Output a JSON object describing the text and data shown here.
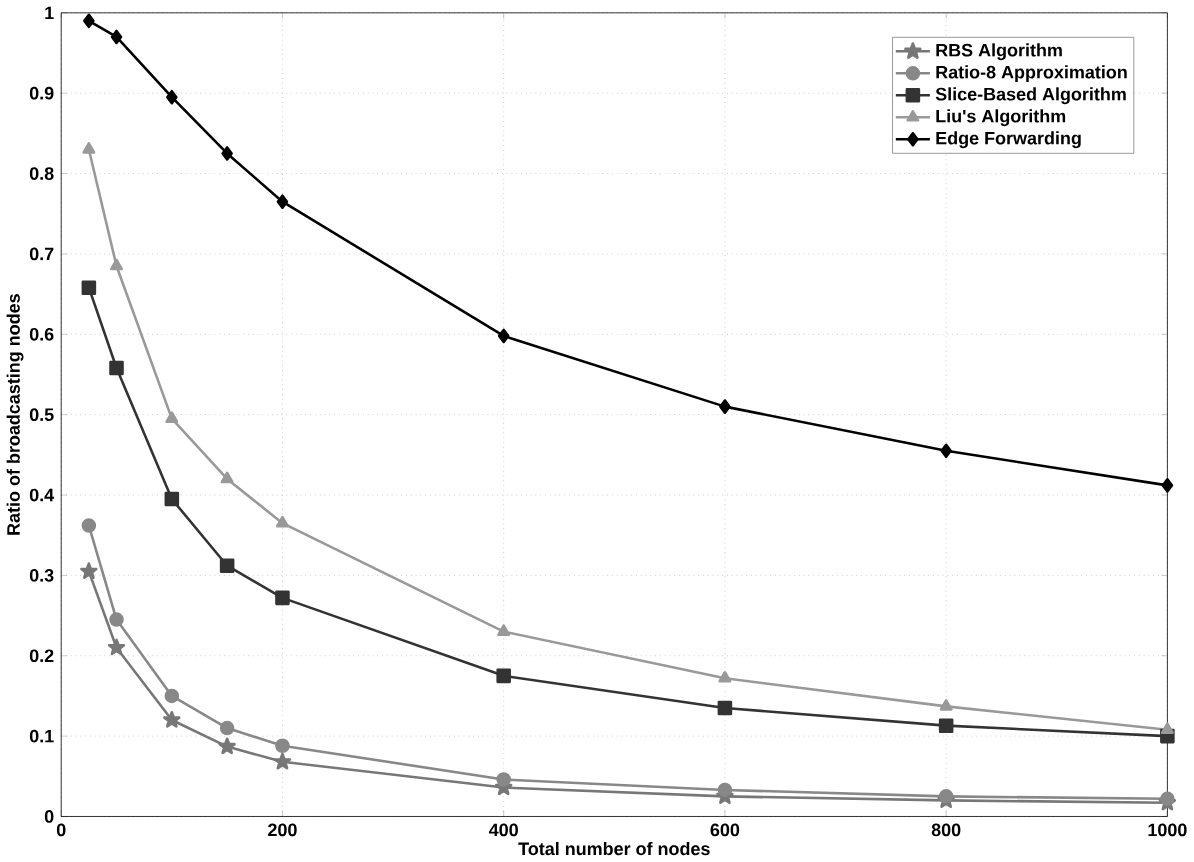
{
  "chart_data": {
    "type": "line",
    "xlabel": "Total number of nodes",
    "ylabel": "Ratio of broadcasting nodes",
    "x": [
      25,
      50,
      100,
      150,
      200,
      400,
      600,
      800,
      1000
    ],
    "xlim": [
      0,
      1000
    ],
    "xticks": [
      0,
      200,
      400,
      600,
      800,
      1000
    ],
    "ylim": [
      0,
      1
    ],
    "yticks": [
      0,
      0.1,
      0.2,
      0.3,
      0.4,
      0.5,
      0.6,
      0.7,
      0.8,
      0.9,
      1
    ],
    "grid": true,
    "legend": "top right",
    "line_style": "solid",
    "series": [
      {
        "name": "RBS Algorithm",
        "color": "#777777",
        "marker": "star",
        "values": [
          0.305,
          0.21,
          0.12,
          0.087,
          0.068,
          0.036,
          0.025,
          0.02,
          0.017
        ]
      },
      {
        "name": "Ratio-8 Approximation",
        "color": "#888888",
        "marker": "circle",
        "values": [
          0.362,
          0.245,
          0.15,
          0.11,
          0.088,
          0.046,
          0.033,
          0.025,
          0.022
        ]
      },
      {
        "name": "Slice-Based Algorithm",
        "color": "#333333",
        "marker": "square",
        "values": [
          0.658,
          0.558,
          0.395,
          0.312,
          0.272,
          0.175,
          0.135,
          0.113,
          0.1
        ]
      },
      {
        "name": "Liu's Algorithm",
        "color": "#999999",
        "marker": "triangle",
        "values": [
          0.83,
          0.685,
          0.495,
          0.42,
          0.365,
          0.23,
          0.172,
          0.137,
          0.108
        ]
      },
      {
        "name": "Edge Forwarding",
        "color": "#000000",
        "marker": "diamond",
        "values": [
          0.99,
          0.97,
          0.895,
          0.825,
          0.765,
          0.598,
          0.51,
          0.455,
          0.412
        ]
      }
    ]
  }
}
